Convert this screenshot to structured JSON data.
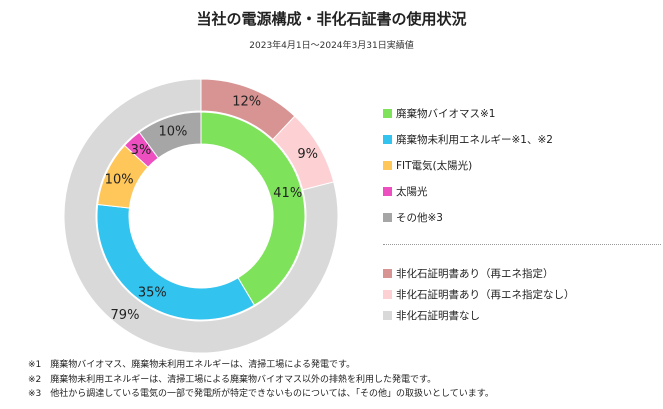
{
  "title": "当社の電源構成・非化石証書の使用状況",
  "subtitle": "2023年4月1日～2024年3月31日実績値",
  "chart_data": [
    {
      "type": "pie",
      "ring": "inner",
      "slices": [
        {
          "name": "廃棄物バイオマス※1",
          "value": 41,
          "label": "41%",
          "color": "#7ee35a"
        },
        {
          "name": "廃棄物未利用エネルギー※1、※2",
          "value": 35,
          "label": "35%",
          "color": "#33c3ef"
        },
        {
          "name": "FIT電気(太陽光)",
          "value": 10,
          "label": "10%",
          "color": "#ffc75a"
        },
        {
          "name": "太陽光",
          "value": 3,
          "label": "3%",
          "color": "#ee4fc0"
        },
        {
          "name": "その他※3",
          "value": 10,
          "label": "10%",
          "color": "#a6a6a6"
        }
      ]
    },
    {
      "type": "pie",
      "ring": "outer",
      "slices": [
        {
          "name": "非化石証明書あり（再エネ指定）",
          "value": 12,
          "label": "12%",
          "color": "#d89393"
        },
        {
          "name": "非化石証明書あり（再エネ指定なし）",
          "value": 9,
          "label": "9%",
          "color": "#fdd0d3"
        },
        {
          "name": "非化石証明書なし",
          "value": 79,
          "label": "79%",
          "color": "#d9d9d9"
        }
      ]
    }
  ],
  "legend_top": [
    {
      "label": "廃棄物バイオマス※1",
      "color": "#7ee35a"
    },
    {
      "label": "廃棄物未利用エネルギー※1、※2",
      "color": "#33c3ef"
    },
    {
      "label": "FIT電気(太陽光)",
      "color": "#ffc75a"
    },
    {
      "label": "太陽光",
      "color": "#ee4fc0"
    },
    {
      "label": "その他※3",
      "color": "#a6a6a6"
    }
  ],
  "legend_bottom": [
    {
      "label": "非化石証明書あり（再エネ指定）",
      "color": "#d89393"
    },
    {
      "label": "非化石証明書あり（再エネ指定なし）",
      "color": "#fdd0d3"
    },
    {
      "label": "非化石証明書なし",
      "color": "#d9d9d9"
    }
  ],
  "notes": [
    "※1　廃棄物バイオマス、廃棄物未利用エネルギーは、清掃工場による発電です。",
    "※2　廃棄物未利用エネルギーは、清掃工場による廃棄物バイオマス以外の排熱を利用した発電です。",
    "※3　他社から調達している電気の一部で発電所が特定できないものについては、「その他」の取扱いとしています。"
  ]
}
